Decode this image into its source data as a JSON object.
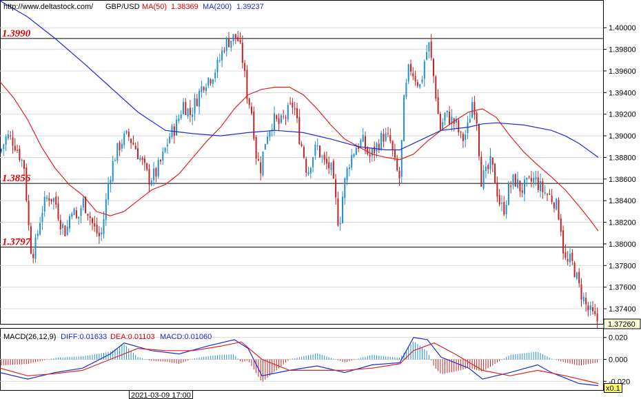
{
  "header": {
    "url": "http://www.deltastock.com/",
    "symbol": "GBP/USD",
    "ma50_label": "MA(50)",
    "ma50_value": "1.38369",
    "ma200_label": "MA(200)",
    "ma200_value": "1.39237"
  },
  "macd_header": {
    "name": "MACD(26,12,9)",
    "diff_label": "DIFF:0.01633",
    "dea_label": "DEA:0.01103",
    "macd_label": "MACD:0.01060"
  },
  "time_label": "2021-03-09 17:00",
  "zoom_label": "x0.1",
  "colors": {
    "up": "#1f8fd0",
    "down": "#c82020",
    "ma50": "#e02020",
    "ma200": "#1c2ad8",
    "level": "#000000",
    "level_text": "#e00000",
    "current_price_box": "#ffffd8"
  },
  "chart_data": [
    {
      "type": "candlestick",
      "title": "GBP/USD",
      "ylim": [
        1.3726,
        1.4025
      ],
      "yticks": [
        "1.40000",
        "1.39800",
        "1.39600",
        "1.39400",
        "1.39200",
        "1.39000",
        "1.38800",
        "1.38600",
        "1.38400",
        "1.38200",
        "1.38000",
        "1.37800",
        "1.37600",
        "1.37400"
      ],
      "current_price": "1.37260",
      "levels": [
        {
          "label": "1.3990",
          "value": 1.399
        },
        {
          "label": "1.3856",
          "value": 1.3856
        },
        {
          "label": "1.3797",
          "value": 1.3797
        }
      ],
      "close_path": [
        [
          0,
          1.3885
        ],
        [
          10,
          1.39
        ],
        [
          20,
          1.3895
        ],
        [
          30,
          1.388
        ],
        [
          36,
          1.387
        ],
        [
          40,
          1.3825
        ],
        [
          46,
          1.379
        ],
        [
          52,
          1.38
        ],
        [
          60,
          1.383
        ],
        [
          70,
          1.3845
        ],
        [
          80,
          1.384
        ],
        [
          88,
          1.382
        ],
        [
          96,
          1.381
        ],
        [
          104,
          1.3835
        ],
        [
          112,
          1.382
        ],
        [
          120,
          1.384
        ],
        [
          128,
          1.383
        ],
        [
          136,
          1.3815
        ],
        [
          146,
          1.3805
        ],
        [
          152,
          1.383
        ],
        [
          158,
          1.386
        ],
        [
          166,
          1.388
        ],
        [
          176,
          1.3895
        ],
        [
          186,
          1.39
        ],
        [
          196,
          1.389
        ],
        [
          206,
          1.3875
        ],
        [
          216,
          1.386
        ],
        [
          226,
          1.3865
        ],
        [
          236,
          1.388
        ],
        [
          246,
          1.39
        ],
        [
          256,
          1.391
        ],
        [
          266,
          1.393
        ],
        [
          276,
          1.392
        ],
        [
          286,
          1.3935
        ],
        [
          296,
          1.395
        ],
        [
          306,
          1.3955
        ],
        [
          316,
          1.3965
        ],
        [
          326,
          1.3985
        ],
        [
          336,
          1.399
        ],
        [
          344,
          1.3992
        ],
        [
          352,
          1.397
        ],
        [
          358,
          1.394
        ],
        [
          366,
          1.392
        ],
        [
          372,
          1.388
        ],
        [
          378,
          1.387
        ],
        [
          386,
          1.39
        ],
        [
          396,
          1.3915
        ],
        [
          406,
          1.391
        ],
        [
          416,
          1.392
        ],
        [
          426,
          1.393
        ],
        [
          434,
          1.39
        ],
        [
          440,
          1.3885
        ],
        [
          446,
          1.3865
        ],
        [
          452,
          1.388
        ],
        [
          460,
          1.389
        ],
        [
          470,
          1.3875
        ],
        [
          480,
          1.387
        ],
        [
          488,
          1.3835
        ],
        [
          492,
          1.3815
        ],
        [
          498,
          1.385
        ],
        [
          506,
          1.3875
        ],
        [
          516,
          1.389
        ],
        [
          526,
          1.3895
        ],
        [
          536,
          1.388
        ],
        [
          546,
          1.389
        ],
        [
          556,
          1.39
        ],
        [
          566,
          1.3895
        ],
        [
          574,
          1.387
        ],
        [
          580,
          1.386
        ],
        [
          586,
          1.393
        ],
        [
          594,
          1.3965
        ],
        [
          602,
          1.3955
        ],
        [
          610,
          1.3945
        ],
        [
          616,
          1.397
        ],
        [
          622,
          1.3985
        ],
        [
          628,
          1.396
        ],
        [
          634,
          1.393
        ],
        [
          638,
          1.3905
        ],
        [
          646,
          1.392
        ],
        [
          654,
          1.3915
        ],
        [
          662,
          1.391
        ],
        [
          670,
          1.3895
        ],
        [
          678,
          1.3905
        ],
        [
          686,
          1.3935
        ],
        [
          692,
          1.3915
        ],
        [
          698,
          1.386
        ],
        [
          706,
          1.3865
        ],
        [
          712,
          1.3875
        ],
        [
          718,
          1.386
        ],
        [
          724,
          1.384
        ],
        [
          730,
          1.383
        ],
        [
          738,
          1.385
        ],
        [
          746,
          1.386
        ],
        [
          756,
          1.385
        ],
        [
          766,
          1.3855
        ],
        [
          776,
          1.386
        ],
        [
          786,
          1.385
        ],
        [
          796,
          1.3845
        ],
        [
          804,
          1.384
        ],
        [
          810,
          1.383
        ],
        [
          814,
          1.3815
        ],
        [
          818,
          1.379
        ],
        [
          822,
          1.378
        ],
        [
          828,
          1.3785
        ],
        [
          834,
          1.3775
        ],
        [
          840,
          1.376
        ],
        [
          846,
          1.375
        ],
        [
          852,
          1.374
        ],
        [
          858,
          1.3735
        ],
        [
          864,
          1.373
        ],
        [
          868,
          1.3729
        ]
      ],
      "series": [
        {
          "name": "MA(50)",
          "points": [
            [
              0,
              1.395
            ],
            [
              20,
              1.3935
            ],
            [
              40,
              1.3915
            ],
            [
              60,
              1.389
            ],
            [
              80,
              1.387
            ],
            [
              100,
              1.3855
            ],
            [
              120,
              1.3845
            ],
            [
              140,
              1.383
            ],
            [
              160,
              1.3826
            ],
            [
              180,
              1.383
            ],
            [
              200,
              1.384
            ],
            [
              220,
              1.385
            ],
            [
              240,
              1.3855
            ],
            [
              260,
              1.3865
            ],
            [
              280,
              1.388
            ],
            [
              300,
              1.3895
            ],
            [
              320,
              1.3908
            ],
            [
              340,
              1.3925
            ],
            [
              360,
              1.3938
            ],
            [
              380,
              1.3943
            ],
            [
              400,
              1.3945
            ],
            [
              420,
              1.3945
            ],
            [
              440,
              1.3938
            ],
            [
              460,
              1.3925
            ],
            [
              480,
              1.391
            ],
            [
              500,
              1.3897
            ],
            [
              520,
              1.389
            ],
            [
              540,
              1.3883
            ],
            [
              560,
              1.388
            ],
            [
              580,
              1.3878
            ],
            [
              600,
              1.3883
            ],
            [
              620,
              1.3895
            ],
            [
              640,
              1.3905
            ],
            [
              660,
              1.3914
            ],
            [
              680,
              1.3922
            ],
            [
              700,
              1.3925
            ],
            [
              720,
              1.3917
            ],
            [
              740,
              1.39
            ],
            [
              760,
              1.3885
            ],
            [
              780,
              1.3873
            ],
            [
              800,
              1.3862
            ],
            [
              820,
              1.385
            ],
            [
              840,
              1.3835
            ],
            [
              855,
              1.3823
            ],
            [
              868,
              1.3812
            ]
          ]
        },
        {
          "name": "MA(200)",
          "points": [
            [
              0,
              1.4025
            ],
            [
              40,
              1.401
            ],
            [
              80,
              1.399
            ],
            [
              120,
              1.3968
            ],
            [
              160,
              1.3945
            ],
            [
              200,
              1.3922
            ],
            [
              240,
              1.3905
            ],
            [
              280,
              1.3902
            ],
            [
              320,
              1.39
            ],
            [
              360,
              1.3903
            ],
            [
              400,
              1.3905
            ],
            [
              440,
              1.3903
            ],
            [
              480,
              1.3897
            ],
            [
              520,
              1.389
            ],
            [
              560,
              1.3887
            ],
            [
              580,
              1.3887
            ],
            [
              600,
              1.3893
            ],
            [
              640,
              1.3905
            ],
            [
              680,
              1.3908
            ],
            [
              700,
              1.3911
            ],
            [
              720,
              1.3912
            ],
            [
              760,
              1.391
            ],
            [
              800,
              1.3905
            ],
            [
              820,
              1.39
            ],
            [
              840,
              1.3893
            ],
            [
              868,
              1.388
            ]
          ]
        }
      ]
    },
    {
      "type": "line",
      "title": "MACD(26,12,9)",
      "ylim": [
        -0.028,
        0.028
      ],
      "yticks": [
        "0.020",
        "0.000",
        "-0.020"
      ],
      "series": [
        {
          "name": "DIFF",
          "points": [
            [
              0,
              -0.012
            ],
            [
              40,
              -0.018
            ],
            [
              80,
              -0.012
            ],
            [
              120,
              -0.008
            ],
            [
              160,
              0.005
            ],
            [
              180,
              0.015
            ],
            [
              220,
              0.008
            ],
            [
              260,
              0.005
            ],
            [
              300,
              0.012
            ],
            [
              340,
              0.018
            ],
            [
              360,
              0.01
            ],
            [
              380,
              -0.015
            ],
            [
              420,
              -0.01
            ],
            [
              460,
              -0.006
            ],
            [
              500,
              -0.012
            ],
            [
              540,
              -0.005
            ],
            [
              580,
              -0.003
            ],
            [
              600,
              0.02
            ],
            [
              620,
              0.018
            ],
            [
              640,
              0.002
            ],
            [
              680,
              -0.008
            ],
            [
              700,
              -0.018
            ],
            [
              740,
              -0.012
            ],
            [
              780,
              -0.005
            ],
            [
              800,
              -0.012
            ],
            [
              840,
              -0.022
            ],
            [
              868,
              -0.024
            ]
          ]
        },
        {
          "name": "DEA",
          "points": [
            [
              0,
              -0.008
            ],
            [
              40,
              -0.015
            ],
            [
              80,
              -0.013
            ],
            [
              120,
              -0.01
            ],
            [
              160,
              0.0
            ],
            [
              200,
              0.01
            ],
            [
              240,
              0.008
            ],
            [
              280,
              0.008
            ],
            [
              320,
              0.012
            ],
            [
              350,
              0.016
            ],
            [
              380,
              0.0
            ],
            [
              420,
              -0.01
            ],
            [
              460,
              -0.01
            ],
            [
              500,
              -0.01
            ],
            [
              540,
              -0.008
            ],
            [
              580,
              -0.004
            ],
            [
              600,
              0.008
            ],
            [
              630,
              0.015
            ],
            [
              660,
              0.005
            ],
            [
              700,
              -0.01
            ],
            [
              740,
              -0.015
            ],
            [
              780,
              -0.01
            ],
            [
              820,
              -0.015
            ],
            [
              868,
              -0.022
            ]
          ]
        }
      ]
    }
  ]
}
